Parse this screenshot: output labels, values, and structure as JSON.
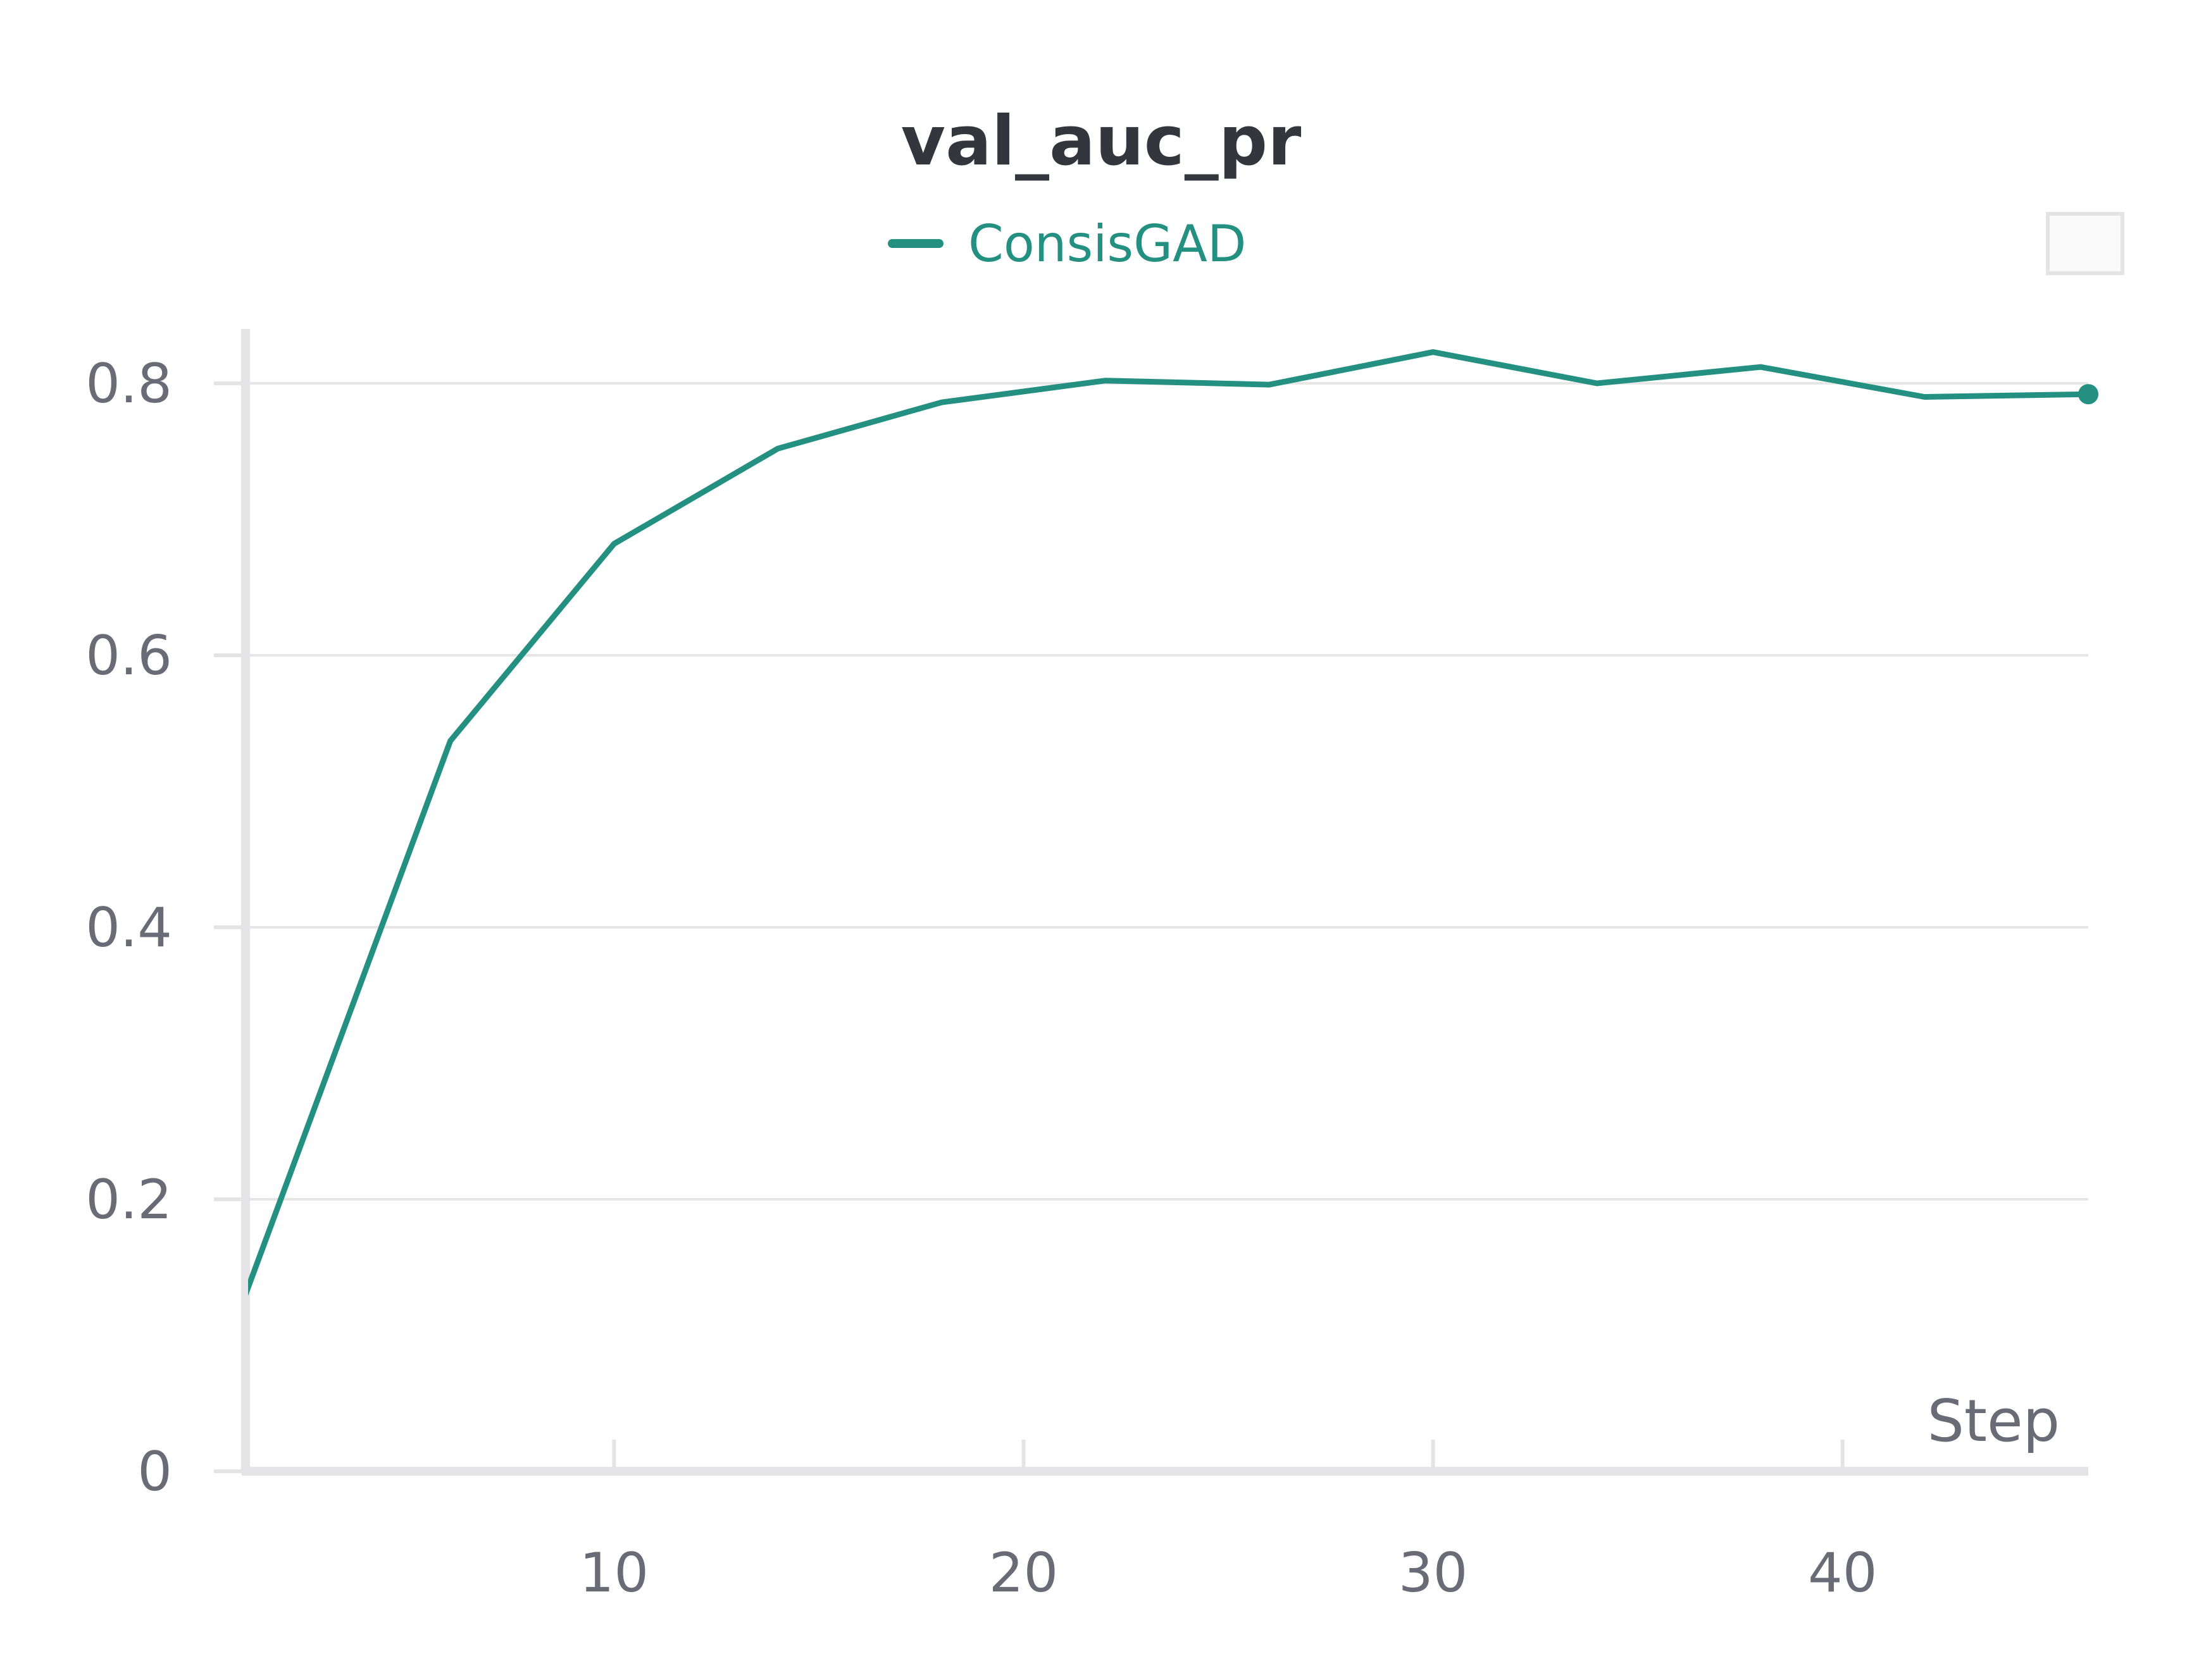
{
  "chart_data": {
    "type": "line",
    "title": "val_auc_pr",
    "xlabel": "Step",
    "ylabel": "",
    "xlim": [
      1,
      46
    ],
    "ylim": [
      0,
      0.84
    ],
    "x_ticks": [
      10,
      20,
      30,
      40
    ],
    "x_tick_labels": [
      "10",
      "20",
      "30",
      "40"
    ],
    "y_ticks": [
      0,
      0.2,
      0.4,
      0.6,
      0.8
    ],
    "y_tick_labels": [
      "0",
      "0.2",
      "0.4",
      "0.6",
      "0.8"
    ],
    "grid": true,
    "legend_placement": "top-center",
    "series": [
      {
        "name": "ConsisGAD",
        "color": "#239082",
        "x": [
          1,
          6,
          10,
          14,
          18,
          22,
          26,
          30,
          34,
          38,
          42,
          46
        ],
        "y": [
          0.13,
          0.537,
          0.682,
          0.752,
          0.786,
          0.802,
          0.799,
          0.823,
          0.8,
          0.812,
          0.79,
          0.792
        ]
      }
    ]
  },
  "colors": {
    "background": "#ffffff",
    "grid": "#e6e6e6",
    "axis": "#e4e4e6",
    "tick_text": "#6b6b78",
    "title": "#33363d",
    "series_accent": "#239082"
  }
}
